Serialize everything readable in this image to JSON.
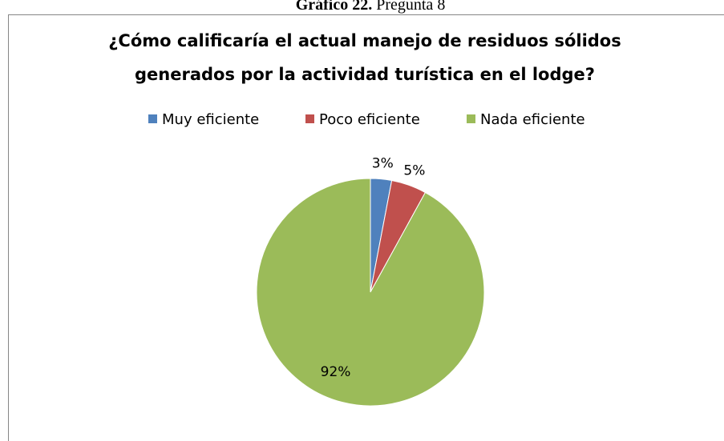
{
  "caption": {
    "label": "Gráfico 22.",
    "text": "Pregunta 8"
  },
  "chart_data": {
    "type": "pie",
    "title": [
      "¿Cómo calificaría el actual manejo de residuos sólidos",
      "generados por la actividad turística en el lodge?"
    ],
    "categories": [
      "Muy eficiente",
      "Poco eficiente",
      "Nada eficiente"
    ],
    "values": [
      3,
      5,
      92
    ],
    "value_labels": [
      "3%",
      "5%",
      "92%"
    ],
    "colors": [
      "#4f81bd",
      "#c0504d",
      "#9bbb59"
    ],
    "legend": "top"
  }
}
